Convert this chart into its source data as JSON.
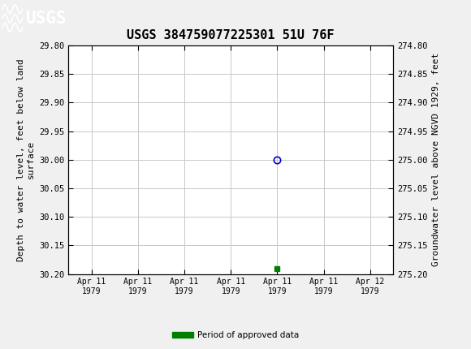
{
  "title": "USGS 384759077225301 51U 76F",
  "ylabel_left": "Depth to water level, feet below land\nsurface",
  "ylabel_right": "Groundwater level above NGVD 1929, feet",
  "ylim_left": [
    29.8,
    30.2
  ],
  "ylim_right": [
    274.8,
    275.2
  ],
  "yticks_left": [
    29.8,
    29.85,
    29.9,
    29.95,
    30.0,
    30.05,
    30.1,
    30.15,
    30.2
  ],
  "ytick_labels_left": [
    "29.80",
    "29.85",
    "29.90",
    "29.95",
    "30.00",
    "30.05",
    "30.10",
    "30.15",
    "30.20"
  ],
  "yticks_right": [
    274.8,
    274.85,
    274.9,
    274.95,
    275.0,
    275.05,
    275.1,
    275.15,
    275.2
  ],
  "ytick_labels_right": [
    "274.80",
    "274.85",
    "274.90",
    "274.95",
    "275.00",
    "275.05",
    "275.10",
    "275.15",
    "275.20"
  ],
  "x_data": [
    4.0
  ],
  "y_data": [
    30.0
  ],
  "marker_color": "#0000cc",
  "marker_style": "o",
  "marker_facecolor": "none",
  "marker_size": 6,
  "green_square_x": 4.0,
  "green_square_y": 30.19,
  "green_square_color": "#008000",
  "green_square_size": 4,
  "xtick_positions": [
    0,
    1,
    2,
    3,
    4,
    5,
    6
  ],
  "xtick_labels": [
    "Apr 11\n1979",
    "Apr 11\n1979",
    "Apr 11\n1979",
    "Apr 11\n1979",
    "Apr 11\n1979",
    "Apr 11\n1979",
    "Apr 12\n1979"
  ],
  "xlim": [
    -0.5,
    6.5
  ],
  "grid_color": "#c8c8c8",
  "background_color": "#f0f0f0",
  "plot_bg_color": "#ffffff",
  "title_fontsize": 11,
  "axis_label_fontsize": 8,
  "tick_fontsize": 7.5,
  "legend_label": "Period of approved data",
  "legend_color": "#008000",
  "header_color": "#1a6b3c"
}
